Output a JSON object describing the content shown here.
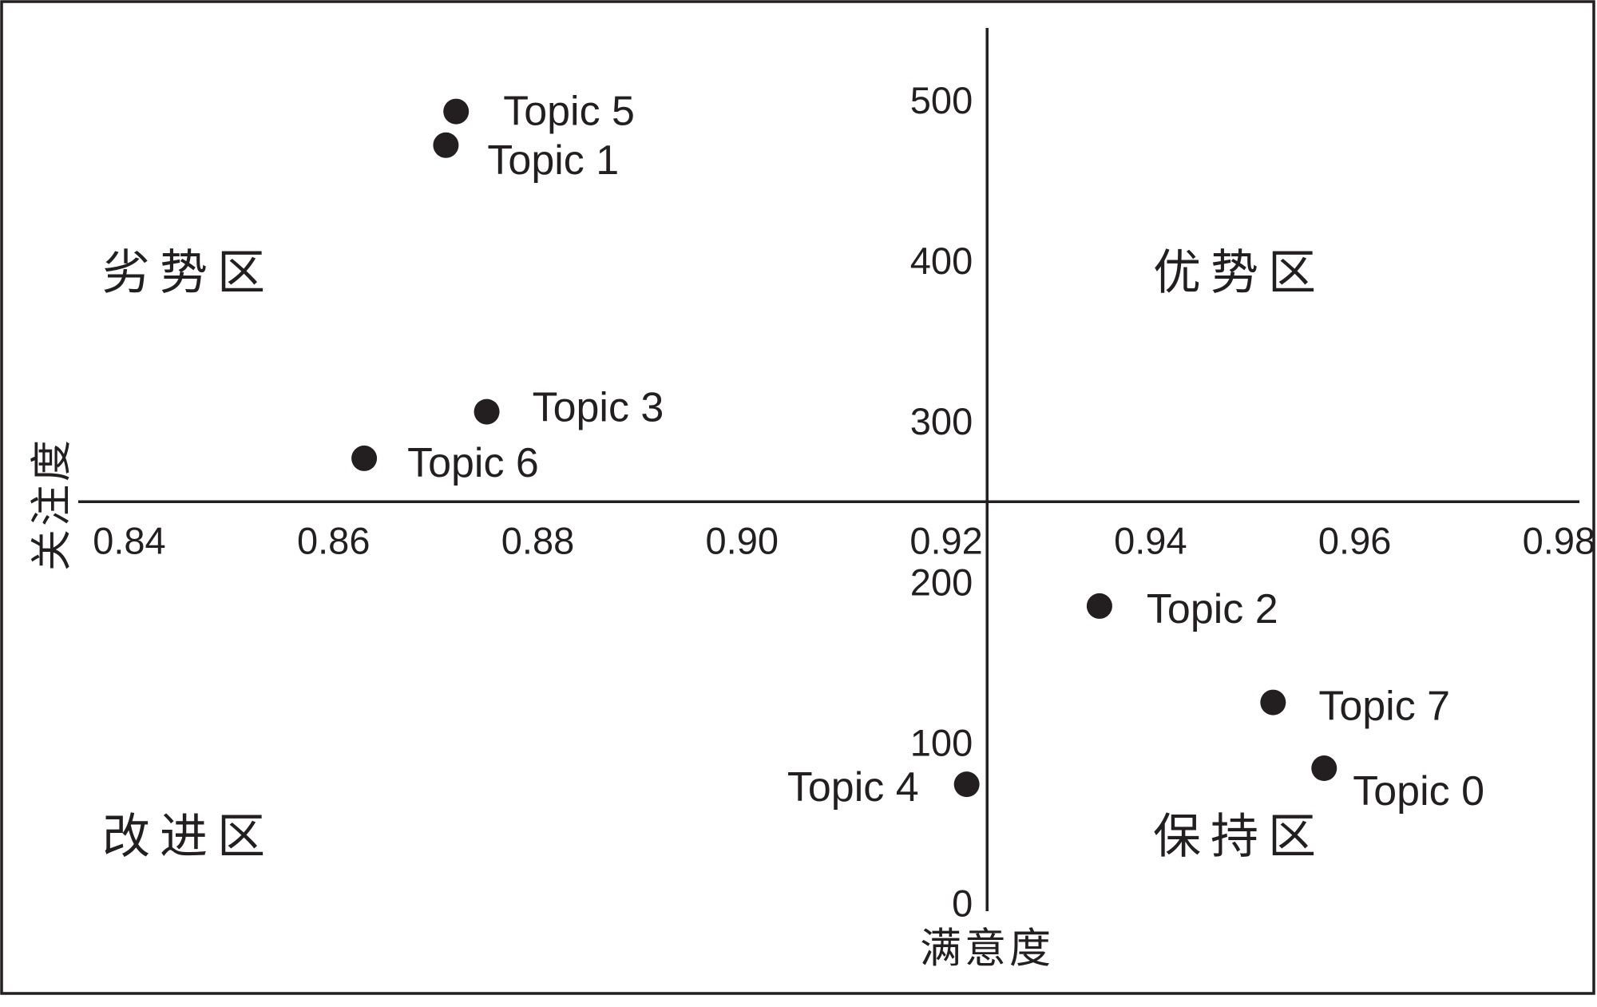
{
  "chart_data": {
    "type": "scatter",
    "xlabel": "满意度",
    "ylabel": "关注度",
    "xlim": [
      0.835,
      0.982
    ],
    "ylim": [
      -5,
      545
    ],
    "axis_cross": {
      "x": 0.924,
      "y": 250
    },
    "x_ticks": [
      0.84,
      0.86,
      0.88,
      0.9,
      0.92,
      0.94,
      0.96,
      0.98
    ],
    "x_tick_labels": [
      "0.84",
      "0.86",
      "0.88",
      "0.90",
      "0.92",
      "0.94",
      "0.96",
      "0.98"
    ],
    "y_ticks": [
      0,
      100,
      200,
      300,
      400,
      500
    ],
    "y_tick_labels": [
      "0",
      "100",
      "200",
      "300",
      "400",
      "500"
    ],
    "grid": false,
    "points": [
      {
        "label": "Topic 0",
        "x": 0.957,
        "y": 84
      },
      {
        "label": "Topic 1",
        "x": 0.871,
        "y": 472
      },
      {
        "label": "Topic 2",
        "x": 0.935,
        "y": 185
      },
      {
        "label": "Topic 3",
        "x": 0.875,
        "y": 306
      },
      {
        "label": "Topic 4",
        "x": 0.922,
        "y": 74
      },
      {
        "label": "Topic 5",
        "x": 0.872,
        "y": 493
      },
      {
        "label": "Topic 6",
        "x": 0.863,
        "y": 277
      },
      {
        "label": "Topic 7",
        "x": 0.952,
        "y": 125
      }
    ],
    "quadrant_labels": {
      "top_left": "劣势区",
      "top_right": "优势区",
      "bottom_left": "改进区",
      "bottom_right": "保持区"
    },
    "colors": {
      "marks": "#231f20",
      "background": "#ffffff"
    }
  }
}
